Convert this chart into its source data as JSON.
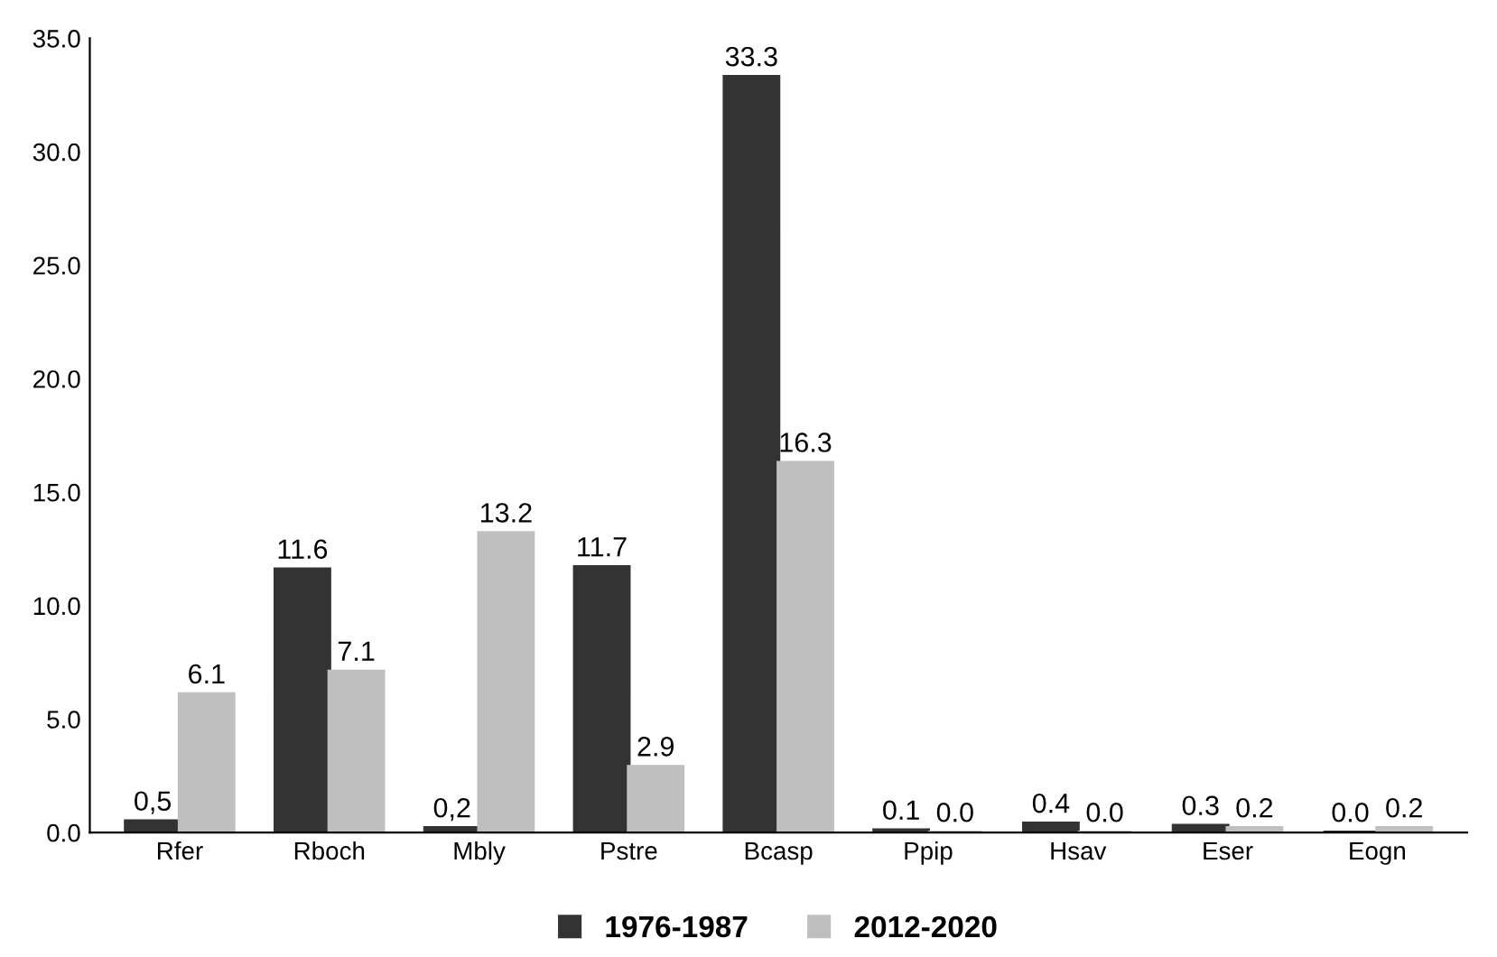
{
  "chart_data": {
    "type": "bar",
    "categories": [
      "Rfer",
      "Rboch",
      "Mbly",
      "Pstre",
      "Bcasp",
      "Ppip",
      "Hsav",
      "Eser",
      "Eogn"
    ],
    "series": [
      {
        "name": "1976-1987",
        "color": "#333333",
        "values": [
          0.5,
          11.6,
          0.2,
          11.7,
          33.3,
          0.1,
          0.4,
          0.3,
          0.0
        ],
        "value_labels": [
          "0,5",
          "11.6",
          "0,2",
          "11.7",
          "33.3",
          "0.1",
          "0.4",
          "0.3",
          "0.0"
        ]
      },
      {
        "name": "2012-2020",
        "color": "#bfbfbf",
        "values": [
          6.1,
          7.1,
          13.2,
          2.9,
          16.3,
          0.0,
          0.0,
          0.2,
          0.2
        ],
        "value_labels": [
          "6.1",
          "7.1",
          "13.2",
          "2.9",
          "16.3",
          "0.0",
          "0.0",
          "0.2",
          "0.2"
        ]
      }
    ],
    "ylim": [
      0,
      35
    ],
    "yticks": [
      {
        "value": 0,
        "label": "0.0"
      },
      {
        "value": 5,
        "label": "5.0"
      },
      {
        "value": 10,
        "label": "10.0"
      },
      {
        "value": 15,
        "label": "15.0"
      },
      {
        "value": 20,
        "label": "20.0"
      },
      {
        "value": 25,
        "label": "25.0"
      },
      {
        "value": 30,
        "label": "30.0"
      },
      {
        "value": 35,
        "label": "35.0"
      }
    ],
    "grid": false,
    "legend": "bottom"
  }
}
